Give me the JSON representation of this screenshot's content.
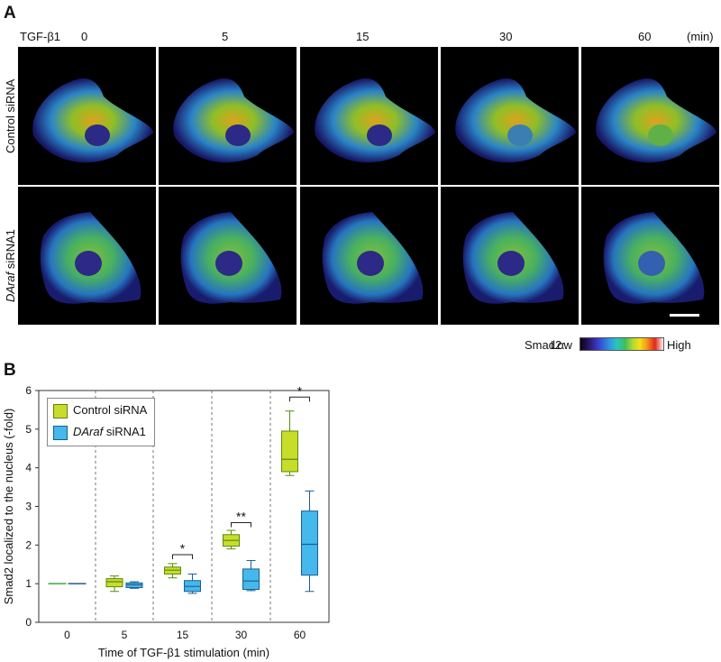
{
  "panel_a": {
    "label": "A",
    "treatment_label": "TGF-β1",
    "time_unit": "(min)",
    "time_points": [
      "0",
      "5",
      "15",
      "30",
      "60"
    ],
    "rows": [
      {
        "label": "Control siRNA"
      },
      {
        "label_italic": "DAraf",
        "label_rest": " siRNA1"
      }
    ],
    "colorbar": {
      "title": "Smad2:",
      "low": "Low",
      "high": "High"
    }
  },
  "panel_b": {
    "label": "B",
    "legend": [
      {
        "label": "Control siRNA",
        "color": "#c8dc2a"
      },
      {
        "label_italic": "DAraf",
        "label_rest": " siRNA1",
        "color": "#45b8ec"
      }
    ],
    "significance": [
      "*",
      "**",
      "*"
    ]
  },
  "chart_data": {
    "type": "box",
    "title": "",
    "xlabel": "Time of TGF-β1 stimulation (min)",
    "ylabel": "Smad2 localized to the nucleus (-fold)",
    "categories": [
      "0",
      "5",
      "15",
      "30",
      "60"
    ],
    "ylim": [
      0,
      6
    ],
    "yticks": [
      "0",
      "1",
      "2",
      "3",
      "4",
      "5",
      "6"
    ],
    "series": [
      {
        "name": "Control siRNA",
        "color": "#c8dc2a",
        "boxes": [
          {
            "min": 1.0,
            "q1": 1.0,
            "median": 1.0,
            "q3": 1.0,
            "max": 1.0
          },
          {
            "min": 0.8,
            "q1": 0.92,
            "median": 1.05,
            "q3": 1.13,
            "max": 1.2
          },
          {
            "min": 1.15,
            "q1": 1.25,
            "median": 1.35,
            "q3": 1.43,
            "max": 1.52
          },
          {
            "min": 1.9,
            "q1": 1.97,
            "median": 2.12,
            "q3": 2.27,
            "max": 2.38
          },
          {
            "min": 3.8,
            "q1": 3.9,
            "median": 4.22,
            "q3": 4.95,
            "max": 5.47
          }
        ]
      },
      {
        "name": "DAraf siRNA1",
        "color": "#45b8ec",
        "boxes": [
          {
            "min": 1.0,
            "q1": 1.0,
            "median": 1.0,
            "q3": 1.0,
            "max": 1.0
          },
          {
            "min": 0.88,
            "q1": 0.9,
            "median": 0.97,
            "q3": 1.02,
            "max": 1.05
          },
          {
            "min": 0.75,
            "q1": 0.8,
            "median": 0.93,
            "q3": 1.08,
            "max": 1.25
          },
          {
            "min": 0.82,
            "q1": 0.85,
            "median": 1.07,
            "q3": 1.38,
            "max": 1.6
          },
          {
            "min": 0.8,
            "q1": 1.22,
            "median": 2.02,
            "q3": 2.88,
            "max": 3.4
          }
        ]
      }
    ],
    "significance": [
      {
        "category": "15",
        "label": "*",
        "y": 1.75
      },
      {
        "category": "30",
        "label": "**",
        "y": 2.58
      },
      {
        "category": "60",
        "label": "*",
        "y": 5.83
      }
    ]
  }
}
